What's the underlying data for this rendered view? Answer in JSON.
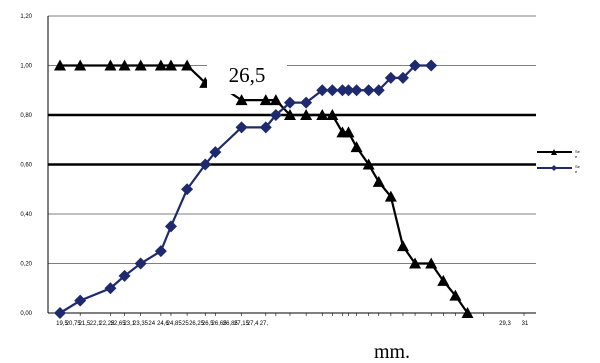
{
  "chart_data": {
    "type": "line",
    "title": "",
    "xlabel": "mm.",
    "ylabel": "",
    "ylim": [
      0,
      1.2
    ],
    "y_ticks": [
      "0,00",
      "0,20",
      "0,40",
      "0,60",
      "0,80",
      "1,00",
      "1,20"
    ],
    "x_tick_labels": [
      "19,5",
      "20,75",
      "21,5",
      "22,1",
      "22,25",
      "22,65",
      "23,1",
      "23,35",
      "24",
      "24,6",
      "24,85",
      "25",
      "26,25",
      "26,5",
      "26,65",
      "26,85",
      "27,15",
      "27,4",
      "27,",
      "29,3",
      "31"
    ],
    "x": [
      19.5,
      20.0,
      20.75,
      21.1,
      21.5,
      22.0,
      22.25,
      22.65,
      23.1,
      23.35,
      24.0,
      24.6,
      24.85,
      25.2,
      25.6,
      26.0,
      26.25,
      26.5,
      26.65,
      26.85,
      27.15,
      27.4,
      27.7,
      28.0,
      28.3,
      28.7,
      29.0,
      29.3,
      29.6,
      30.0,
      31.0
    ],
    "series": [
      {
        "name": "Se",
        "legend_text": [
          "Se",
          "e"
        ],
        "color": "#000000",
        "marker": "triangle",
        "values": [
          1.0,
          1.0,
          1.0,
          1.0,
          1.0,
          1.0,
          1.0,
          1.0,
          0.93,
          0.93,
          0.86,
          0.86,
          0.86,
          0.8,
          0.8,
          0.8,
          0.8,
          0.73,
          0.73,
          0.67,
          0.6,
          0.53,
          0.47,
          0.27,
          0.2,
          0.2,
          0.13,
          0.07,
          0.0,
          null,
          null
        ]
      },
      {
        "name": "Se",
        "legend_text": [
          "Se",
          "e"
        ],
        "color": "#1f2a6e",
        "marker": "diamond",
        "values": [
          0.0,
          0.05,
          0.1,
          0.15,
          0.2,
          0.25,
          0.35,
          0.5,
          0.6,
          0.65,
          0.75,
          0.75,
          0.8,
          0.85,
          0.85,
          0.9,
          0.9,
          0.9,
          0.9,
          0.9,
          0.9,
          0.9,
          0.95,
          0.95,
          1.0,
          1.0,
          null,
          null,
          null,
          null,
          null
        ]
      }
    ],
    "thick_reference_lines": [
      0.8,
      0.6
    ],
    "annotation": "26,5",
    "grid": true,
    "legend_position": "right"
  }
}
